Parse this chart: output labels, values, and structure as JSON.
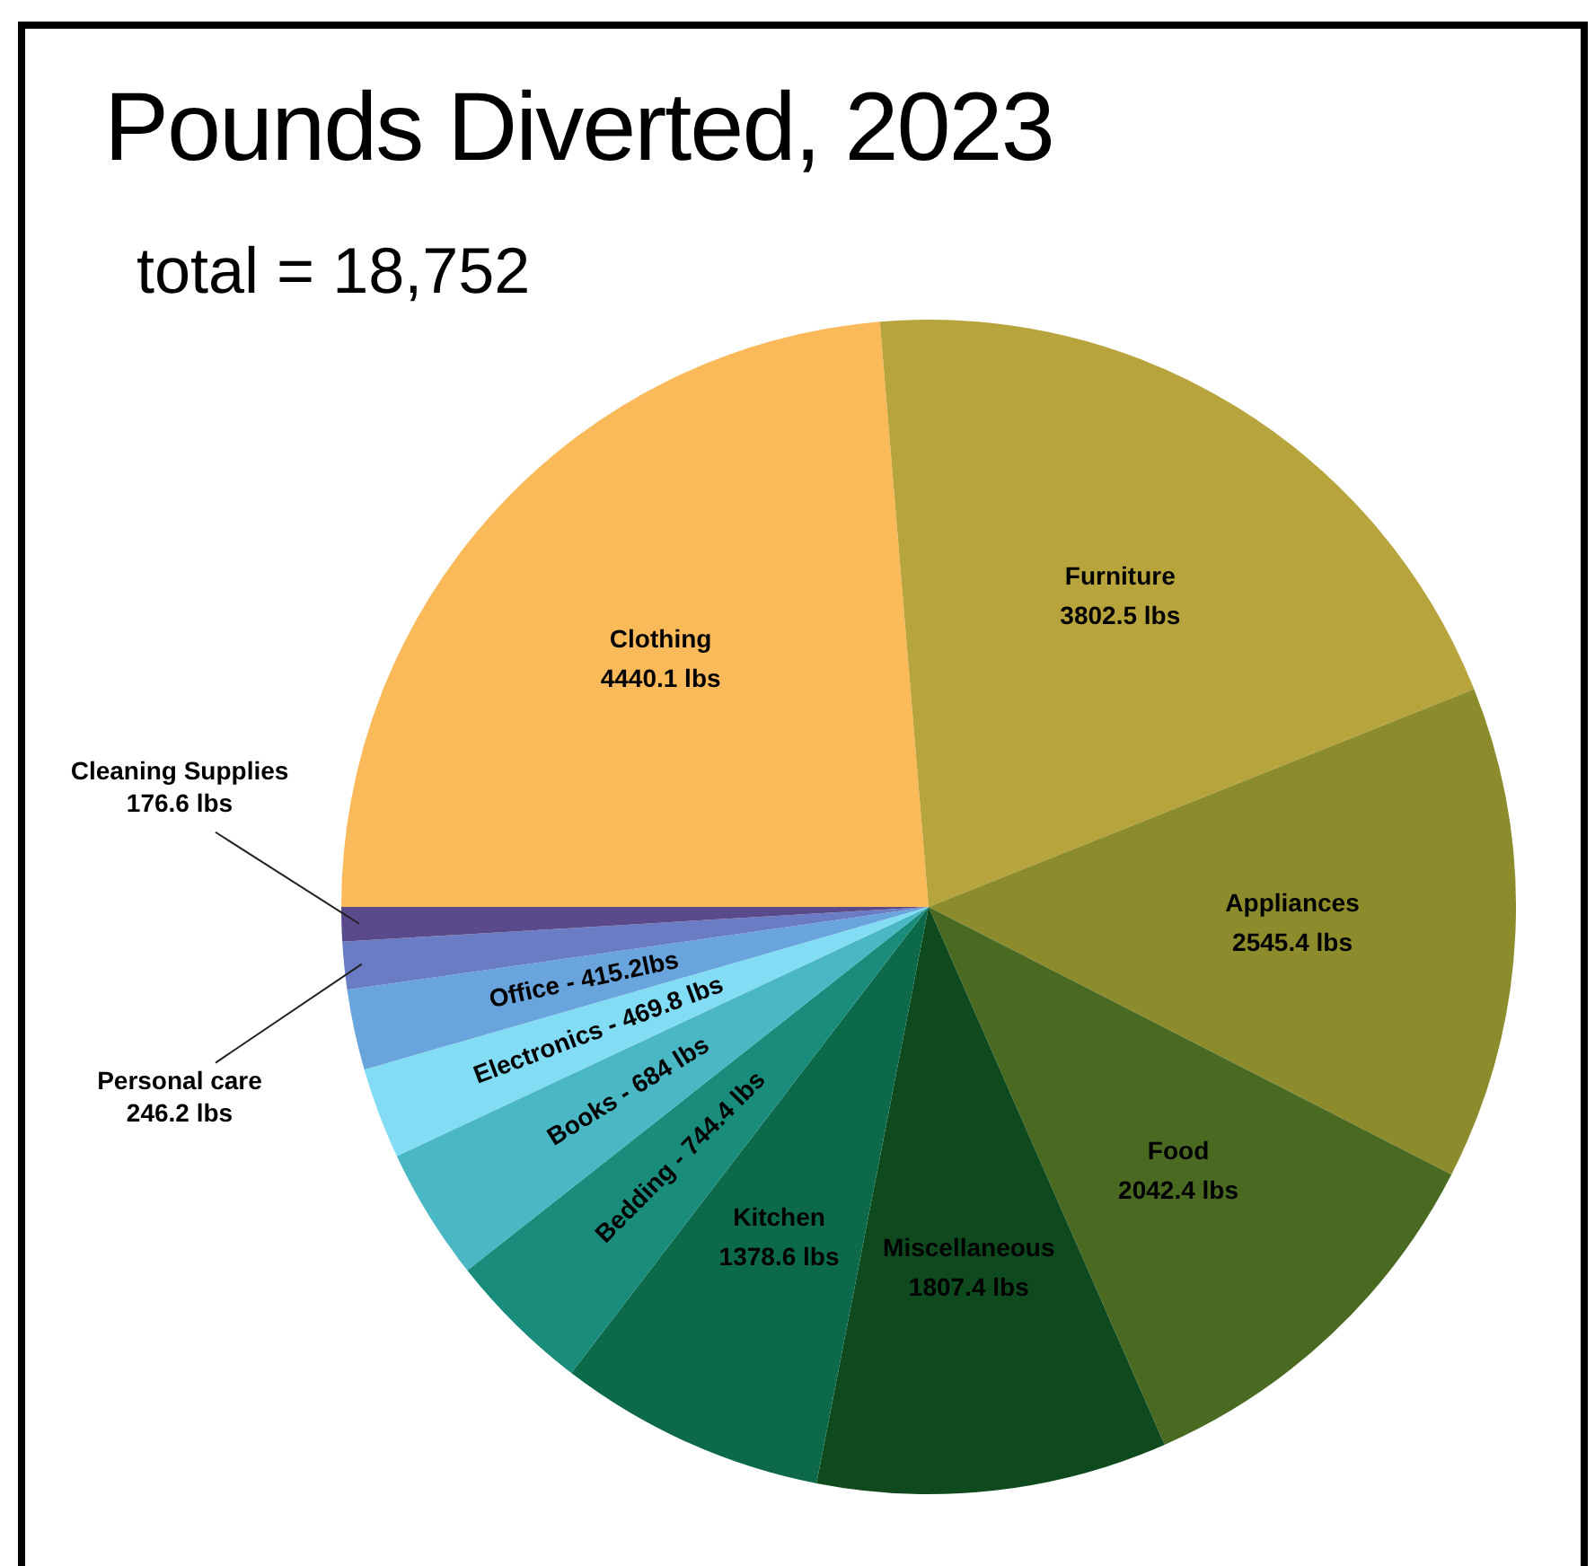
{
  "chart_data": {
    "type": "pie",
    "title": "Pounds Diverted, 2023",
    "subtitle": "total = 18,752",
    "categories": [
      "Clothing",
      "Furniture",
      "Appliances",
      "Food",
      "Miscellaneous",
      "Kitchen",
      "Bedding",
      "Books",
      "Electronics",
      "Office",
      "Personal care",
      "Cleaning Supplies"
    ],
    "values": [
      4440.1,
      3802.5,
      2545.4,
      2042.4,
      1807.4,
      1378.6,
      744.4,
      684,
      469.8,
      415.2,
      246.2,
      176.6
    ],
    "colors": [
      "#fbba5a",
      "#b8a43c",
      "#8c8c2c",
      "#4a6a22",
      "#0e4a1e",
      "#0c6a4a",
      "#1a8c7c",
      "#4ab8c4",
      "#82dcf4",
      "#6aa4dc",
      "#6a7cc4",
      "#5a4a8c"
    ],
    "value_labels": [
      "4440.1 lbs",
      "3802.5 lbs",
      "2545.4 lbs",
      "2042.4 lbs",
      "1807.4 lbs",
      "1378.6 lbs",
      "744.4 lbs",
      "684 lbs",
      "469.8 lbs",
      "415.2lbs",
      "246.2 lbs",
      "176.6 lbs"
    ]
  }
}
